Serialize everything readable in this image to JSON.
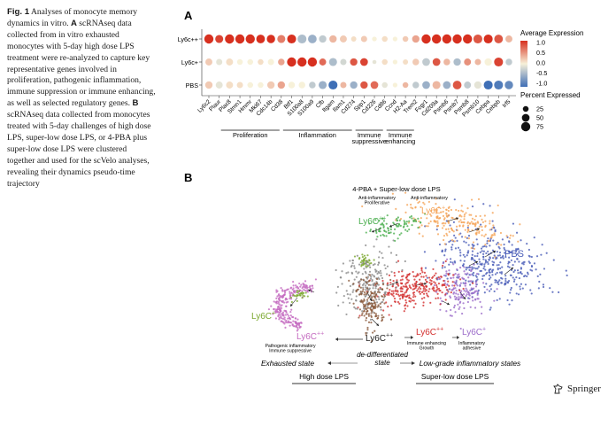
{
  "caption": {
    "label": "Fig. 1",
    "text_a_intro": "Analyses of monocyte memory dynamics in vitro.",
    "a_letter": "A",
    "text_a": "scRNAseq data collected from in vitro exhausted monocytes with 5-day high dose LPS treatment were re-analyzed to capture key representative genes involved in proliferation, pathogenic inflammation, immune suppression or immune enhancing, as well as selected regulatory genes.",
    "b_letter": "B",
    "text_b": "scRNAseq data collected from monocytes treated with 5-day challenges of high dose LPS, super-low dose LPS, or 4-PBA plus super-low dose LPS were clustered together and used for the scVelo analyses, revealing their dynamics pseudo-time trajectory"
  },
  "panel_a": {
    "letter": "A",
    "chart_data": {
      "type": "dotplot",
      "rows": [
        "Ly6c++",
        "Ly6c+",
        "PBS"
      ],
      "genes": [
        "Ly6c2",
        "Plaur",
        "Plac8",
        "Stmn1",
        "Hmmr",
        "Mki67",
        "Cdc14b",
        "Cd38",
        "Btf1",
        "S100a8",
        "S100a9",
        "Cfb",
        "Itgam",
        "Ilam1",
        "Cd274",
        "Spp1",
        "Cd226",
        "Cd86",
        "Ccnd",
        "H2-Aa",
        "Trem2",
        "Fcgr1",
        "Cd209a",
        "Psmb6",
        "Psmb7",
        "Psmb8",
        "Psmb10",
        "Cebpa",
        "Cebpb",
        "Irf5"
      ],
      "avg_expression": [
        [
          1.0,
          0.9,
          1.0,
          1.0,
          1.0,
          1.0,
          1.0,
          0.6,
          1.0,
          -0.4,
          -0.5,
          -0.3,
          0.3,
          0.2,
          0.1,
          0.2,
          0.0,
          0.1,
          0.0,
          0.2,
          0.4,
          1.0,
          1.0,
          1.0,
          1.0,
          1.0,
          0.8,
          1.0,
          0.8,
          0.3
        ],
        [
          0.2,
          -0.1,
          0.1,
          0.0,
          0.0,
          0.1,
          0.0,
          0.4,
          1.0,
          1.0,
          1.0,
          0.7,
          -0.4,
          -0.2,
          0.8,
          0.9,
          -0.1,
          0.1,
          0.0,
          0.1,
          0.2,
          -0.3,
          0.8,
          0.3,
          -0.4,
          0.5,
          0.3,
          0.0,
          0.9,
          -0.3
        ],
        [
          0.2,
          -0.1,
          0.1,
          0.1,
          0.0,
          0.0,
          0.2,
          0.4,
          0.0,
          0.0,
          -0.3,
          -0.5,
          -1.0,
          0.3,
          -0.5,
          0.8,
          0.7,
          -0.1,
          0.0,
          0.3,
          -0.3,
          -0.5,
          0.3,
          -0.5,
          0.8,
          -0.3,
          -0.1,
          -1.0,
          -0.9,
          -0.8
        ]
      ],
      "pct_expressed": [
        [
          75,
          55,
          75,
          75,
          75,
          65,
          60,
          55,
          70,
          70,
          65,
          45,
          45,
          40,
          20,
          30,
          15,
          25,
          15,
          25,
          45,
          75,
          75,
          75,
          75,
          75,
          70,
          70,
          65,
          40
        ],
        [
          40,
          30,
          40,
          25,
          25,
          25,
          30,
          35,
          75,
          75,
          75,
          40,
          55,
          30,
          45,
          50,
          10,
          25,
          15,
          20,
          35,
          50,
          50,
          35,
          45,
          40,
          30,
          45,
          70,
          35
        ],
        [
          45,
          40,
          40,
          30,
          25,
          25,
          45,
          45,
          35,
          35,
          35,
          55,
          70,
          30,
          45,
          45,
          50,
          25,
          15,
          25,
          35,
          50,
          55,
          50,
          65,
          40,
          45,
          70,
          70,
          60
        ]
      ],
      "groups": [
        {
          "label": "Proliferation",
          "start": 1,
          "end": 7
        },
        {
          "label": "Inflammation",
          "start": 7,
          "end": 14
        },
        {
          "label": "Immune\nsuppressive",
          "start": 14,
          "end": 17
        },
        {
          "label": "Immune\nenhancing",
          "start": 17,
          "end": 20
        }
      ],
      "legend": {
        "color_title": "Average Expression",
        "color_ticks": [
          "1.0",
          "0.5",
          "0.0",
          "-0.5",
          "-1.0"
        ],
        "size_title": "Percent Expressed",
        "size_ticks": [
          "25",
          "50",
          "75"
        ]
      },
      "colors": {
        "high": "#d7301f",
        "mid": "#f7f1d9",
        "low": "#3f6fb6"
      }
    }
  },
  "panel_b": {
    "letter": "B",
    "top_label": "4-PBA + Super-low dose LPS",
    "sub_left": "Anti-inflammatory\nProliferative",
    "sub_right": "Anti-inflammatory",
    "labels": {
      "ly6c_pp_green": "Ly6C",
      "ly6c_p_orange": "Ly6C",
      "pbs": "PBS",
      "ly6c_p_green_left": "Ly6C",
      "ly6c_pp_magenta": "Ly6C",
      "ly6c_pp_center": "Ly6C",
      "ly6c_pp_red": "Ly6C",
      "ly6c_p_purple": "Ly6C"
    },
    "sup_pp": "++",
    "sup_p": "+",
    "note_pathogenic": "Pathogenic inflammatory\nImmune suppressive",
    "note_enhancing": "Immune enhancing\nGrowth",
    "note_adhesive": "Inflammatory\nadhesive",
    "dediff": "de-differentiated\nstate",
    "exhausted": "Exhausted state",
    "low_grade": "Low-grade inflammatory states",
    "high_dose": "High dose LPS",
    "super_low": "Super-low dose LPS",
    "cluster_colors": {
      "green": "#4caf50",
      "orange": "#f5a55a",
      "blue": "#4a5db8",
      "purple": "#9b6bc9",
      "red": "#d3302f",
      "magenta": "#c46bc0",
      "gray": "#8a8a8a",
      "brown": "#8b5a3c",
      "olive": "#7aa82e"
    }
  },
  "publisher": "Springer"
}
